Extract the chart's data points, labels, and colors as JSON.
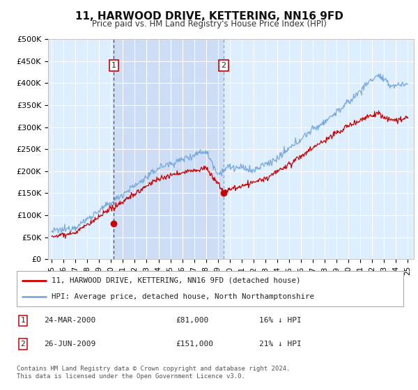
{
  "title": "11, HARWOOD DRIVE, KETTERING, NN16 9FD",
  "subtitle": "Price paid vs. HM Land Registry's House Price Index (HPI)",
  "background_color": "#ffffff",
  "plot_bg_color": "#ddeeff",
  "shade_color": "#ccddf5",
  "grid_color": "#ffffff",
  "hpi_color": "#7aaadd",
  "price_color": "#cc0000",
  "ylim": [
    0,
    500000
  ],
  "yticks": [
    0,
    50000,
    100000,
    150000,
    200000,
    250000,
    300000,
    350000,
    400000,
    450000,
    500000
  ],
  "ytick_labels": [
    "£0",
    "£50K",
    "£100K",
    "£150K",
    "£200K",
    "£250K",
    "£300K",
    "£350K",
    "£400K",
    "£450K",
    "£500K"
  ],
  "xlim_start": 1994.7,
  "xlim_end": 2025.5,
  "sale1_x": 2000.23,
  "sale1_y": 81000,
  "sale2_x": 2009.48,
  "sale2_y": 151000,
  "vline1_color": "#cc0000",
  "vline2_color": "#8899bb",
  "legend_line1": "11, HARWOOD DRIVE, KETTERING, NN16 9FD (detached house)",
  "legend_line2": "HPI: Average price, detached house, North Northamptonshire",
  "table_row1_num": "1",
  "table_row1_date": "24-MAR-2000",
  "table_row1_price": "£81,000",
  "table_row1_hpi": "16% ↓ HPI",
  "table_row2_num": "2",
  "table_row2_date": "26-JUN-2009",
  "table_row2_price": "£151,000",
  "table_row2_hpi": "21% ↓ HPI",
  "footer": "Contains HM Land Registry data © Crown copyright and database right 2024.\nThis data is licensed under the Open Government Licence v3.0."
}
